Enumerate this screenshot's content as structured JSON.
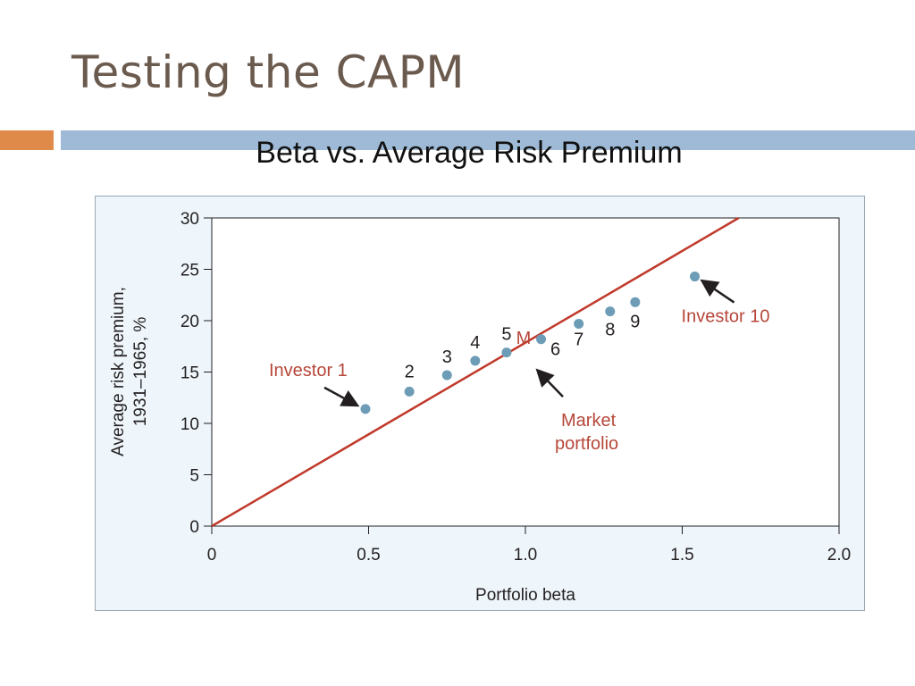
{
  "slide": {
    "title": "Testing the CAPM",
    "subtitle": "Beta vs. Average Risk Premium"
  },
  "colors": {
    "line": "#c0392b",
    "point": "#6d9cb6",
    "annotation": "#b6473a"
  },
  "chart_data": {
    "type": "scatter",
    "title": "Beta vs. Average Risk Premium",
    "xlabel": "Portfolio beta",
    "ylabel_lines": [
      "Average risk premium,",
      "1931–1965, %"
    ],
    "xlim": [
      0,
      2.0
    ],
    "ylim": [
      0,
      30
    ],
    "x_ticks": [
      0,
      0.5,
      1.0,
      1.5,
      2.0
    ],
    "x_tick_labels": [
      "0",
      "0.5",
      "1.0",
      "1.5",
      "2.0"
    ],
    "y_ticks": [
      0,
      5,
      10,
      15,
      20,
      25,
      30
    ],
    "y_tick_labels": [
      "0",
      "5",
      "10",
      "15",
      "20",
      "25",
      "30"
    ],
    "points": [
      {
        "label": "1",
        "x": 0.49,
        "y": 11.4
      },
      {
        "label": "2",
        "x": 0.63,
        "y": 13.1
      },
      {
        "label": "3",
        "x": 0.75,
        "y": 14.7
      },
      {
        "label": "4",
        "x": 0.84,
        "y": 16.1
      },
      {
        "label": "5",
        "x": 0.94,
        "y": 16.9
      },
      {
        "label": "6",
        "x": 1.05,
        "y": 18.2
      },
      {
        "label": "7",
        "x": 1.17,
        "y": 19.7
      },
      {
        "label": "8",
        "x": 1.27,
        "y": 20.9
      },
      {
        "label": "9",
        "x": 1.35,
        "y": 21.8
      },
      {
        "label": "10",
        "x": 1.54,
        "y": 24.3
      }
    ],
    "market_line": {
      "x": [
        0,
        1.68
      ],
      "y": [
        0,
        30
      ]
    },
    "market_point": {
      "label": "M",
      "x": 1.0,
      "y": 17.9
    },
    "annotations": {
      "investor1": "Investor 1",
      "investor10": "Investor 10",
      "market_line1": "Market",
      "market_line2": "portfolio"
    }
  }
}
